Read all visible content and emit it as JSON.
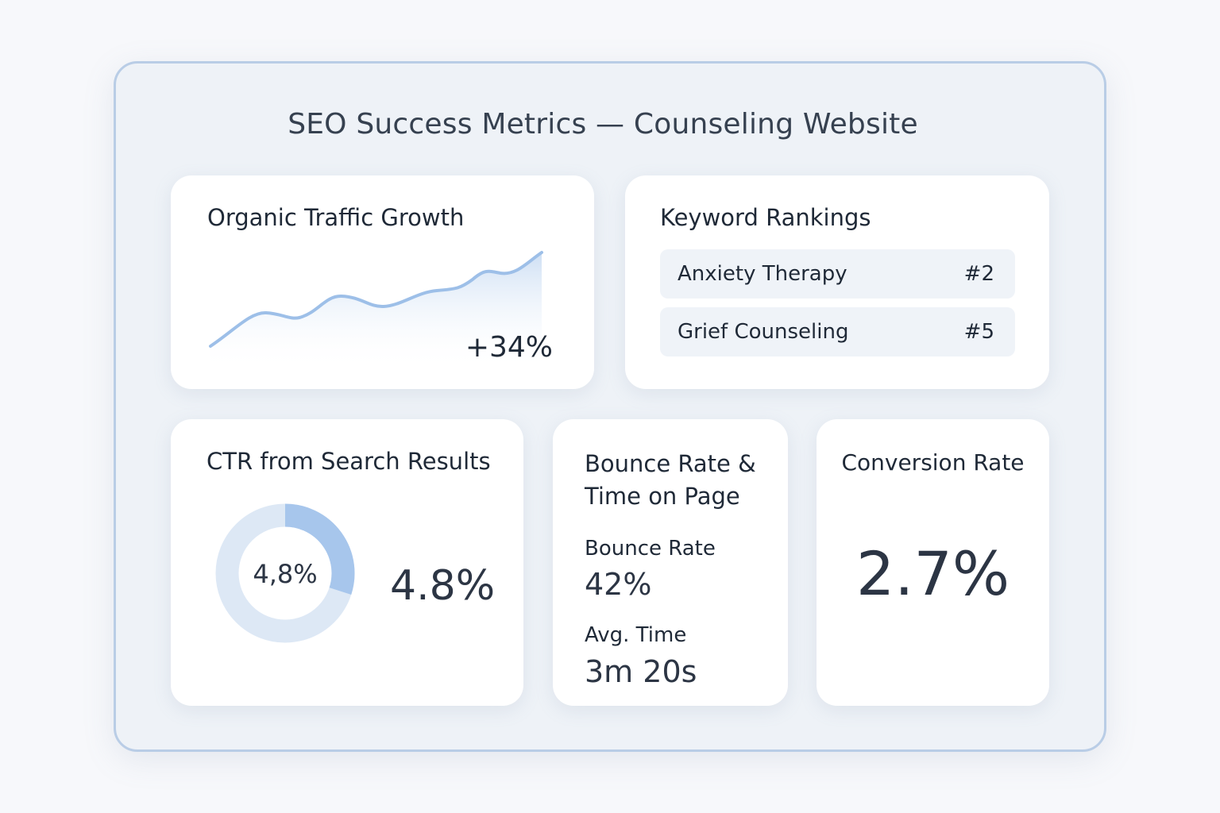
{
  "page_title": "SEO Success Metrics — Counseling Website",
  "traffic": {
    "title": "Organic Traffic Growth",
    "delta": "+34%",
    "line_color": "#9dbfe8"
  },
  "keywords": {
    "title": "Keyword Rankings",
    "rows": [
      {
        "name": "Anxiety Therapy",
        "rank": "#2"
      },
      {
        "name": "Grief Counseling",
        "rank": "#5"
      }
    ]
  },
  "ctr": {
    "title": "CTR from Search Results",
    "donut_label": "4,8%",
    "value": "4.8%",
    "fill_fraction": 0.3,
    "fill_color": "#a7c6ec",
    "track_color": "#dde8f5"
  },
  "bounce": {
    "title": "Bounce Rate & Time on Page",
    "bounce_label": "Bounce Rate",
    "bounce_value": "42%",
    "time_label": "Avg. Time",
    "time_value": "3m 20s"
  },
  "conversion": {
    "title": "Conversion Rate",
    "value": "2.7%"
  }
}
